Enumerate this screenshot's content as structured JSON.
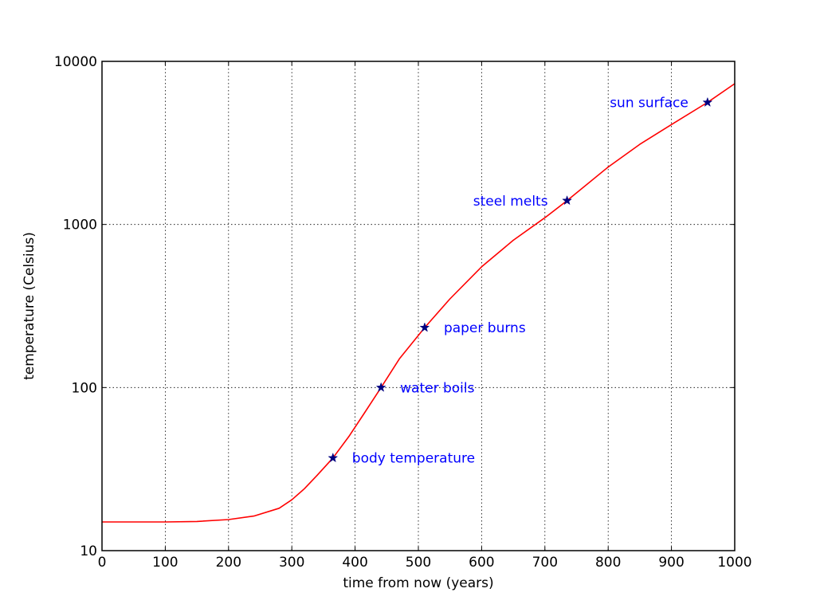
{
  "chart_data": {
    "type": "line",
    "title": "",
    "xlabel": "time from now (years)",
    "ylabel": "temperature (Celsius)",
    "xlim": [
      0,
      1000
    ],
    "ylim": [
      10,
      10000
    ],
    "yscale": "log",
    "grid": true,
    "x_ticks": [
      "0",
      "100",
      "200",
      "300",
      "400",
      "500",
      "600",
      "700",
      "800",
      "900",
      "1000"
    ],
    "y_ticks": [
      "10",
      "100",
      "1000",
      "10000"
    ],
    "series": [
      {
        "color": "#ff0000",
        "x": [
          0,
          50,
          100,
          150,
          200,
          240,
          280,
          300,
          320,
          340,
          365,
          390,
          415,
          441,
          470,
          510,
          550,
          600,
          650,
          700,
          735,
          800,
          850,
          900,
          957,
          1000
        ],
        "y": [
          15,
          15,
          15,
          15.1,
          15.5,
          16.3,
          18.2,
          20.5,
          24,
          29,
          37,
          50,
          70,
          100,
          150,
          233,
          350,
          550,
          800,
          1100,
          1400,
          2250,
          3100,
          4100,
          5600,
          7300
        ]
      }
    ],
    "annotations": [
      {
        "label": "body temperature",
        "x": 365,
        "y": 37,
        "color": "#0000ff",
        "marker_color": "#000080"
      },
      {
        "label": "water boils",
        "x": 441,
        "y": 100,
        "color": "#0000ff",
        "marker_color": "#000080"
      },
      {
        "label": "paper burns",
        "x": 510,
        "y": 233,
        "color": "#0000ff",
        "marker_color": "#000080"
      },
      {
        "label": "steel melts",
        "x": 735,
        "y": 1400,
        "color": "#0000ff",
        "marker_color": "#000080"
      },
      {
        "label": "sun surface",
        "x": 957,
        "y": 5600,
        "color": "#0000ff",
        "marker_color": "#000080"
      }
    ]
  }
}
